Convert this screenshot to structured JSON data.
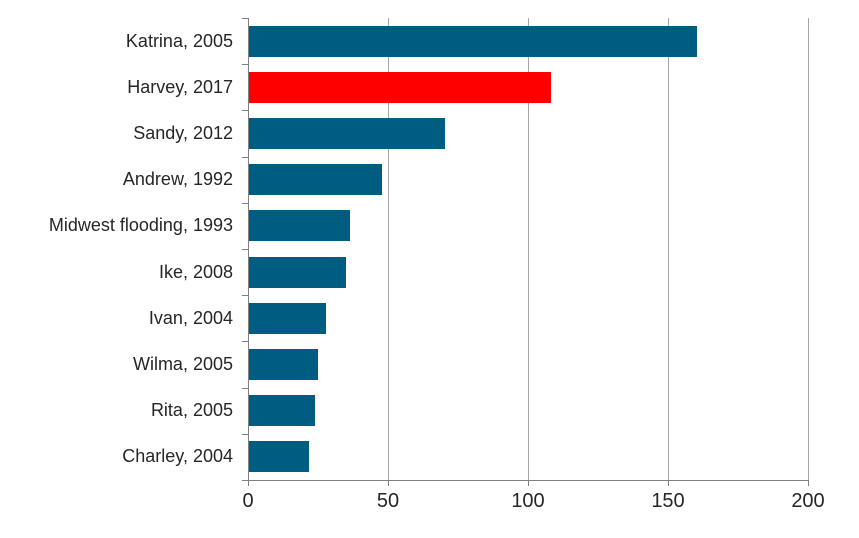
{
  "chart_data": {
    "type": "bar",
    "orientation": "horizontal",
    "title": "",
    "xlabel": "",
    "ylabel": "",
    "categories": [
      "Katrina, 2005",
      "Harvey, 2017",
      "Sandy, 2012",
      "Andrew, 1992",
      "Midwest flooding, 1993",
      "Ike, 2008",
      "Ivan, 2004",
      "Wilma, 2005",
      "Rita, 2005",
      "Charley, 2004"
    ],
    "values": [
      160,
      108,
      70,
      47.5,
      36,
      34.5,
      27.5,
      24.5,
      23.5,
      21.5
    ],
    "bar_colors": [
      "#005d82",
      "#ff0000",
      "#005d82",
      "#005d82",
      "#005d82",
      "#005d82",
      "#005d82",
      "#005d82",
      "#005d82",
      "#005d82"
    ],
    "highlight_index": 1,
    "xlim": [
      0,
      200
    ],
    "xticks": [
      "0",
      "50",
      "100",
      "150",
      "200"
    ],
    "xtick_values": [
      0,
      50,
      100,
      150,
      200
    ],
    "grid": true,
    "legend": false,
    "colors": {
      "bar_default": "#005d82",
      "bar_highlight": "#ff0000",
      "gridline": "#a6a6a6",
      "axis": "#808080",
      "text": "#262626"
    }
  }
}
